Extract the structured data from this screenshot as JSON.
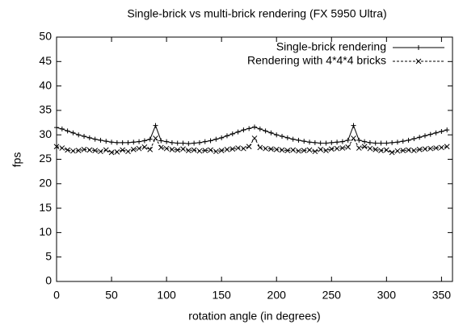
{
  "chart_data": {
    "type": "line",
    "title": "Single-brick vs multi-brick rendering (FX 5950 Ultra)",
    "xlabel": "rotation angle (in degrees)",
    "ylabel": "fps",
    "x": [
      0,
      5,
      10,
      15,
      20,
      25,
      30,
      35,
      40,
      45,
      50,
      55,
      60,
      65,
      70,
      75,
      80,
      85,
      90,
      95,
      100,
      105,
      110,
      115,
      120,
      125,
      130,
      135,
      140,
      145,
      150,
      155,
      160,
      165,
      170,
      175,
      180,
      185,
      190,
      195,
      200,
      205,
      210,
      215,
      220,
      225,
      230,
      235,
      240,
      245,
      250,
      255,
      260,
      265,
      270,
      275,
      280,
      285,
      290,
      295,
      300,
      305,
      310,
      315,
      320,
      325,
      330,
      335,
      340,
      345,
      350,
      355
    ],
    "series": [
      {
        "name": "Single-brick rendering",
        "color": "#000000",
        "dash": false,
        "marker": "plus",
        "values": [
          31.5,
          31.2,
          30.8,
          30.4,
          30.0,
          29.7,
          29.4,
          29.1,
          28.9,
          28.7,
          28.5,
          28.4,
          28.4,
          28.4,
          28.5,
          28.6,
          28.8,
          29.1,
          31.9,
          28.8,
          28.6,
          28.4,
          28.3,
          28.3,
          28.2,
          28.3,
          28.4,
          28.6,
          28.8,
          29.1,
          29.4,
          29.8,
          30.2,
          30.6,
          31.0,
          31.3,
          31.6,
          31.2,
          30.8,
          30.4,
          30.0,
          29.7,
          29.4,
          29.1,
          28.9,
          28.7,
          28.5,
          28.4,
          28.3,
          28.3,
          28.4,
          28.5,
          28.6,
          28.9,
          31.9,
          28.9,
          28.6,
          28.4,
          28.3,
          28.3,
          28.3,
          28.4,
          28.5,
          28.7,
          28.9,
          29.2,
          29.5,
          29.8,
          30.1,
          30.4,
          30.7,
          31.0
        ]
      },
      {
        "name": "Rendering with 4*4*4 bricks",
        "color": "#000000",
        "dash": true,
        "marker": "cross",
        "values": [
          27.6,
          27.3,
          26.9,
          26.7,
          26.8,
          27.0,
          26.9,
          26.8,
          26.6,
          26.9,
          26.4,
          26.5,
          26.9,
          26.6,
          27.0,
          27.2,
          27.5,
          27.0,
          29.3,
          27.4,
          27.2,
          27.0,
          26.9,
          27.1,
          26.8,
          26.9,
          26.7,
          26.8,
          26.9,
          26.6,
          26.8,
          27.0,
          27.1,
          27.3,
          27.2,
          27.6,
          29.3,
          27.4,
          27.2,
          27.1,
          27.0,
          26.9,
          26.8,
          26.9,
          26.7,
          26.8,
          26.9,
          26.6,
          27.0,
          26.8,
          27.1,
          27.2,
          27.3,
          27.5,
          29.3,
          27.3,
          27.6,
          27.2,
          27.0,
          26.8,
          26.9,
          26.4,
          26.7,
          26.8,
          26.9,
          26.8,
          27.0,
          27.1,
          27.2,
          27.3,
          27.4,
          27.6
        ]
      }
    ],
    "xlim": [
      0,
      360
    ],
    "xticks": [
      0,
      50,
      100,
      150,
      200,
      250,
      300,
      350
    ],
    "ylim": [
      0,
      50
    ],
    "yticks": [
      0,
      5,
      10,
      15,
      20,
      25,
      30,
      35,
      40,
      45,
      50
    ],
    "legend": "top-right"
  }
}
